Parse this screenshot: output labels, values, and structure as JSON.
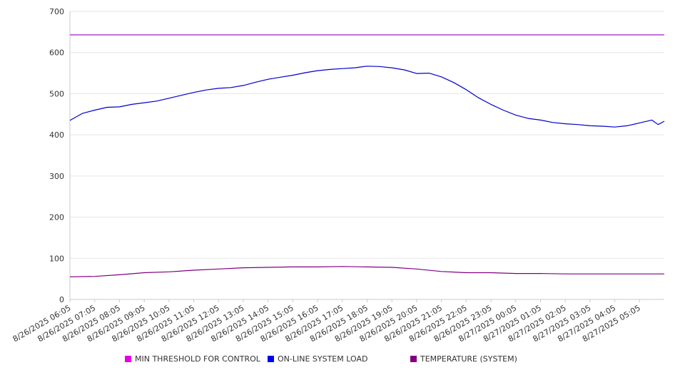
{
  "chart_data": {
    "type": "line",
    "title": "",
    "xlabel": "",
    "ylabel": "",
    "ylim": [
      0,
      700
    ],
    "yticks": [
      0,
      100,
      200,
      300,
      400,
      500,
      600,
      700
    ],
    "grid": true,
    "legend_position": "bottom",
    "x_tick_labels": [
      "8/26/2025 06:05",
      "8/26/2025 07:05",
      "8/26/2025 08:05",
      "8/26/2025 09:05",
      "8/26/2025 10:05",
      "8/26/2025 11:05",
      "8/26/2025 12:05",
      "8/26/2025 13:05",
      "8/26/2025 14:05",
      "8/26/2025 15:05",
      "8/26/2025 16:05",
      "8/26/2025 17:05",
      "8/26/2025 18:05",
      "8/26/2025 19:05",
      "8/26/2025 20:05",
      "8/26/2025 21:05",
      "8/26/2025 22:05",
      "8/26/2025 23:05",
      "8/27/2025 00:05",
      "8/27/2025 01:05",
      "8/27/2025 02:05",
      "8/27/2025 03:05",
      "8/27/2025 04:05",
      "8/27/2025 05:05"
    ],
    "x_end": "8/27/2025 06:05",
    "series": [
      {
        "name": "MIN THRESHOLD FOR CONTROL",
        "color": "#e600e6",
        "line_color": "#a020c0",
        "points": [
          [
            "8/26/2025 06:05",
            643
          ],
          [
            "8/27/2025 06:05",
            643
          ]
        ]
      },
      {
        "name": "ON-LINE SYSTEM LOAD",
        "color": "#0000ee",
        "line_color": "#0000cc",
        "points": [
          [
            "8/26/2025 06:05",
            435
          ],
          [
            "8/26/2025 06:35",
            452
          ],
          [
            "8/26/2025 07:05",
            460
          ],
          [
            "8/26/2025 07:35",
            467
          ],
          [
            "8/26/2025 08:05",
            468
          ],
          [
            "8/26/2025 08:35",
            474
          ],
          [
            "8/26/2025 09:05",
            478
          ],
          [
            "8/26/2025 09:35",
            482
          ],
          [
            "8/26/2025 10:05",
            489
          ],
          [
            "8/26/2025 10:35",
            496
          ],
          [
            "8/26/2025 11:05",
            503
          ],
          [
            "8/26/2025 11:35",
            509
          ],
          [
            "8/26/2025 12:05",
            513
          ],
          [
            "8/26/2025 12:35",
            515
          ],
          [
            "8/26/2025 13:05",
            520
          ],
          [
            "8/26/2025 13:35",
            528
          ],
          [
            "8/26/2025 14:05",
            535
          ],
          [
            "8/26/2025 14:35",
            540
          ],
          [
            "8/26/2025 15:05",
            545
          ],
          [
            "8/26/2025 15:35",
            551
          ],
          [
            "8/26/2025 16:05",
            556
          ],
          [
            "8/26/2025 16:35",
            559
          ],
          [
            "8/26/2025 17:05",
            561
          ],
          [
            "8/26/2025 17:35",
            563
          ],
          [
            "8/26/2025 18:05",
            567
          ],
          [
            "8/26/2025 18:35",
            566
          ],
          [
            "8/26/2025 19:05",
            563
          ],
          [
            "8/26/2025 19:35",
            558
          ],
          [
            "8/26/2025 20:05",
            549
          ],
          [
            "8/26/2025 20:35",
            550
          ],
          [
            "8/26/2025 21:05",
            541
          ],
          [
            "8/26/2025 21:35",
            527
          ],
          [
            "8/26/2025 22:05",
            510
          ],
          [
            "8/26/2025 22:35",
            490
          ],
          [
            "8/26/2025 23:05",
            474
          ],
          [
            "8/26/2025 23:35",
            460
          ],
          [
            "8/27/2025 00:05",
            448
          ],
          [
            "8/27/2025 00:35",
            440
          ],
          [
            "8/27/2025 01:05",
            436
          ],
          [
            "8/27/2025 01:35",
            430
          ],
          [
            "8/27/2025 02:05",
            427
          ],
          [
            "8/27/2025 02:35",
            425
          ],
          [
            "8/27/2025 03:05",
            422
          ],
          [
            "8/27/2025 03:35",
            421
          ],
          [
            "8/27/2025 04:05",
            419
          ],
          [
            "8/27/2025 04:35",
            422
          ],
          [
            "8/27/2025 05:05",
            429
          ],
          [
            "8/27/2025 05:35",
            436
          ],
          [
            "8/27/2025 05:50",
            425
          ],
          [
            "8/27/2025 06:05",
            433
          ]
        ]
      },
      {
        "name": "TEMPERATURE (SYSTEM)",
        "color": "#800080",
        "line_color": "#800080",
        "points": [
          [
            "8/26/2025 06:05",
            55
          ],
          [
            "8/26/2025 07:05",
            56
          ],
          [
            "8/26/2025 08:05",
            60
          ],
          [
            "8/26/2025 09:05",
            65
          ],
          [
            "8/26/2025 10:05",
            67
          ],
          [
            "8/26/2025 11:05",
            71
          ],
          [
            "8/26/2025 12:05",
            74
          ],
          [
            "8/26/2025 13:05",
            77
          ],
          [
            "8/26/2025 14:05",
            78
          ],
          [
            "8/26/2025 15:05",
            79
          ],
          [
            "8/26/2025 16:05",
            79
          ],
          [
            "8/26/2025 17:05",
            80
          ],
          [
            "8/26/2025 18:05",
            79
          ],
          [
            "8/26/2025 19:05",
            78
          ],
          [
            "8/26/2025 20:05",
            74
          ],
          [
            "8/26/2025 21:05",
            68
          ],
          [
            "8/26/2025 22:05",
            65
          ],
          [
            "8/26/2025 23:05",
            65
          ],
          [
            "8/27/2025 00:05",
            63
          ],
          [
            "8/27/2025 01:05",
            63
          ],
          [
            "8/27/2025 02:05",
            62
          ],
          [
            "8/27/2025 03:05",
            62
          ],
          [
            "8/27/2025 04:05",
            62
          ],
          [
            "8/27/2025 05:05",
            62
          ],
          [
            "8/27/2025 06:05",
            62
          ]
        ]
      }
    ]
  }
}
